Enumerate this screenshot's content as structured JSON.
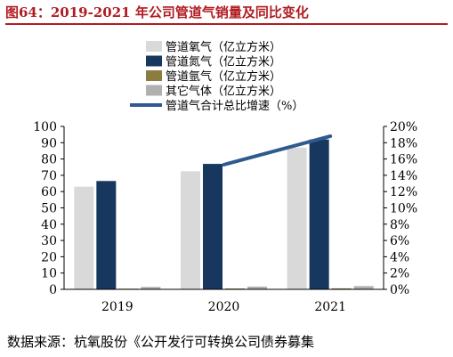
{
  "figure_title": "图64：2019-2021 年公司管道气销量及同比变化",
  "source_note": "数据来源：杭氧股份《公开发行可转换公司债券募集",
  "chart_data": {
    "type": "bar",
    "categories": [
      "2019",
      "2020",
      "2021"
    ],
    "series": [
      {
        "name": "管道氧气（亿立方米）",
        "type": "bar",
        "axis": "left",
        "color": "#d9d9d9",
        "values": [
          63,
          72.5,
          87
        ]
      },
      {
        "name": "管道氮气（亿立方米）",
        "type": "bar",
        "axis": "left",
        "color": "#17375e",
        "values": [
          66.5,
          77,
          92
        ]
      },
      {
        "name": "管道氩气（亿立方米）",
        "type": "bar",
        "axis": "left",
        "color": "#8d7c3f",
        "values": [
          0.4,
          0.5,
          0.6
        ]
      },
      {
        "name": "其它气体（亿立方米）",
        "type": "bar",
        "axis": "left",
        "color": "#b0b0b0",
        "values": [
          1.5,
          1.7,
          2.0
        ]
      },
      {
        "name": "管道气合计总比增速（%）",
        "type": "line",
        "axis": "right",
        "color": "#2e5a8e",
        "values": [
          null,
          15.3,
          18.8
        ]
      }
    ],
    "y_left": {
      "min": 0,
      "max": 100,
      "ticks": [
        "0",
        "10",
        "20",
        "30",
        "40",
        "50",
        "60",
        "70",
        "80",
        "90",
        "100"
      ]
    },
    "y_right": {
      "min": 0,
      "max": 20,
      "ticks": [
        "0%",
        "2%",
        "4%",
        "6%",
        "8%",
        "10%",
        "12%",
        "14%",
        "16%",
        "18%",
        "20%"
      ]
    },
    "grid": false,
    "legend_position": "top"
  }
}
